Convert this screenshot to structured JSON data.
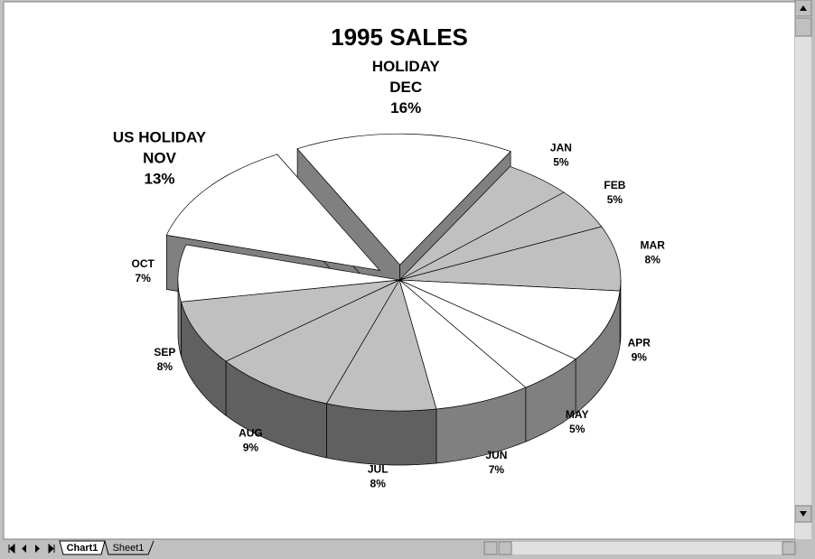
{
  "chart_data": {
    "type": "pie3d",
    "title": "1995 SALES",
    "categories": [
      "JAN",
      "FEB",
      "MAR",
      "APR",
      "MAY",
      "JUN",
      "JUL",
      "AUG",
      "SEP",
      "OCT",
      "NOV",
      "DEC"
    ],
    "category_notes": [
      null,
      null,
      null,
      null,
      null,
      null,
      null,
      null,
      null,
      null,
      "US HOLIDAY",
      "HOLIDAY"
    ],
    "values": [
      5,
      5,
      8,
      9,
      5,
      7,
      8,
      9,
      8,
      7,
      13,
      16
    ],
    "value_labels": [
      "5%",
      "5%",
      "8%",
      "9%",
      "5%",
      "7%",
      "8%",
      "9%",
      "8%",
      "7%",
      "13%",
      "16%"
    ],
    "colors": [
      "#c0c0c0",
      "#c0c0c0",
      "#c0c0c0",
      "#ffffff",
      "#ffffff",
      "#ffffff",
      "#c0c0c0",
      "#c0c0c0",
      "#c0c0c0",
      "#ffffff",
      "#ffffff",
      "#ffffff"
    ],
    "exploded": [
      false,
      false,
      false,
      false,
      false,
      false,
      false,
      false,
      false,
      false,
      true,
      true
    ]
  },
  "ui": {
    "sheet_tabs": [
      "Chart1",
      "Sheet1"
    ]
  }
}
